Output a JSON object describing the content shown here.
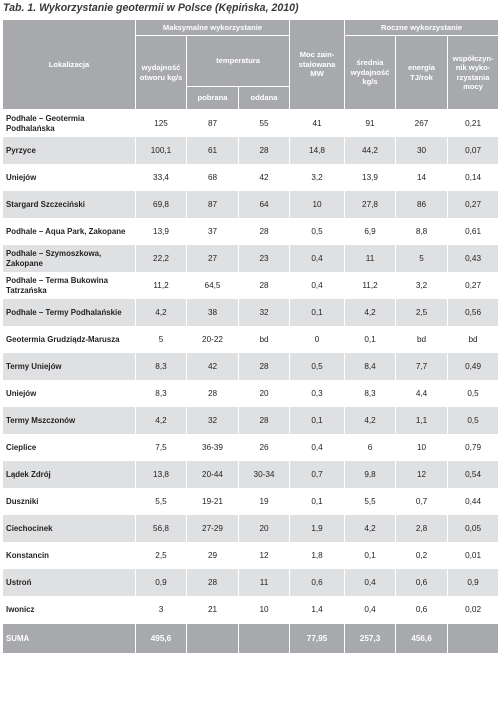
{
  "caption": "Tab. 1. Wykorzystanie geotermii w Polsce (Kępińska, 2010)",
  "headers": {
    "lokalizacja": "Lokalizacja",
    "maks_group": "Maksymalne wykorzystanie",
    "roczne_group": "Roczne wykorzystanie",
    "wydajnosc": "wydajność otworu kg/s",
    "temperatura": "temperatura",
    "pobrana": "pobrana",
    "oddana": "oddana",
    "moc": "Moc zain-stalowana MW",
    "srednia": "średnia wydajność kg/s",
    "energia": "energia TJ/rok",
    "wspolczynnik": "współczyn-nik wyko-rzystania mocy"
  },
  "rows": [
    [
      "Podhale – Geotermia Podhalańska",
      "125",
      "87",
      "55",
      "41",
      "91",
      "267",
      "0,21"
    ],
    [
      "Pyrzyce",
      "100,1",
      "61",
      "28",
      "14,8",
      "44,2",
      "30",
      "0,07"
    ],
    [
      "Uniejów",
      "33,4",
      "68",
      "42",
      "3,2",
      "13,9",
      "14",
      "0,14"
    ],
    [
      "Stargard Szczeciński",
      "69,8",
      "87",
      "64",
      "10",
      "27,8",
      "86",
      "0,27"
    ],
    [
      "Podhale – Aqua Park, Zakopane",
      "13,9",
      "37",
      "28",
      "0,5",
      "6,9",
      "8,8",
      "0,61"
    ],
    [
      "Podhale – Szymoszkowa, Zakopane",
      "22,2",
      "27",
      "23",
      "0,4",
      "11",
      "5",
      "0,43"
    ],
    [
      "Podhale – Terma Bukowina Tatrzańska",
      "11,2",
      "64,5",
      "28",
      "0,4",
      "11,2",
      "3,2",
      "0,27"
    ],
    [
      "Podhale – Termy Podhalańskie",
      "4,2",
      "38",
      "32",
      "0,1",
      "4,2",
      "2,5",
      "0,56"
    ],
    [
      "Geotermia Grudziądz-Marusza",
      "5",
      "20-22",
      "bd",
      "0",
      "0,1",
      "bd",
      "bd"
    ],
    [
      "Termy Uniejów",
      "8,3",
      "42",
      "28",
      "0,5",
      "8,4",
      "7,7",
      "0,49"
    ],
    [
      "Uniejów",
      "8,3",
      "28",
      "20",
      "0,3",
      "8,3",
      "4,4",
      "0,5"
    ],
    [
      "Termy Mszczonów",
      "4,2",
      "32",
      "28",
      "0,1",
      "4,2",
      "1,1",
      "0,5"
    ],
    [
      "Cieplice",
      "7,5",
      "36-39",
      "26",
      "0,4",
      "6",
      "10",
      "0,79"
    ],
    [
      "Lądek Zdrój",
      "13,8",
      "20-44",
      "30-34",
      "0,7",
      "9,8",
      "12",
      "0,54"
    ],
    [
      "Duszniki",
      "5,5",
      "19-21",
      "19",
      "0,1",
      "5,5",
      "0,7",
      "0,44"
    ],
    [
      "Ciechocinek",
      "56,8",
      "27-29",
      "20",
      "1,9",
      "4,2",
      "2,8",
      "0,05"
    ],
    [
      "Konstancin",
      "2,5",
      "29",
      "12",
      "1,8",
      "0,1",
      "0,2",
      "0,01"
    ],
    [
      "Ustroń",
      "0,9",
      "28",
      "11",
      "0,6",
      "0,4",
      "0,6",
      "0,9"
    ],
    [
      "Iwonicz",
      "3",
      "21",
      "10",
      "1,4",
      "0,4",
      "0,6",
      "0,02"
    ]
  ],
  "suma": [
    "SUMA",
    "495,6",
    "",
    "",
    "77,95",
    "257,3",
    "456,6",
    ""
  ],
  "colors": {
    "header": "#a7a9ac",
    "stripe": "#dfe0e1",
    "text": "#231f20"
  }
}
